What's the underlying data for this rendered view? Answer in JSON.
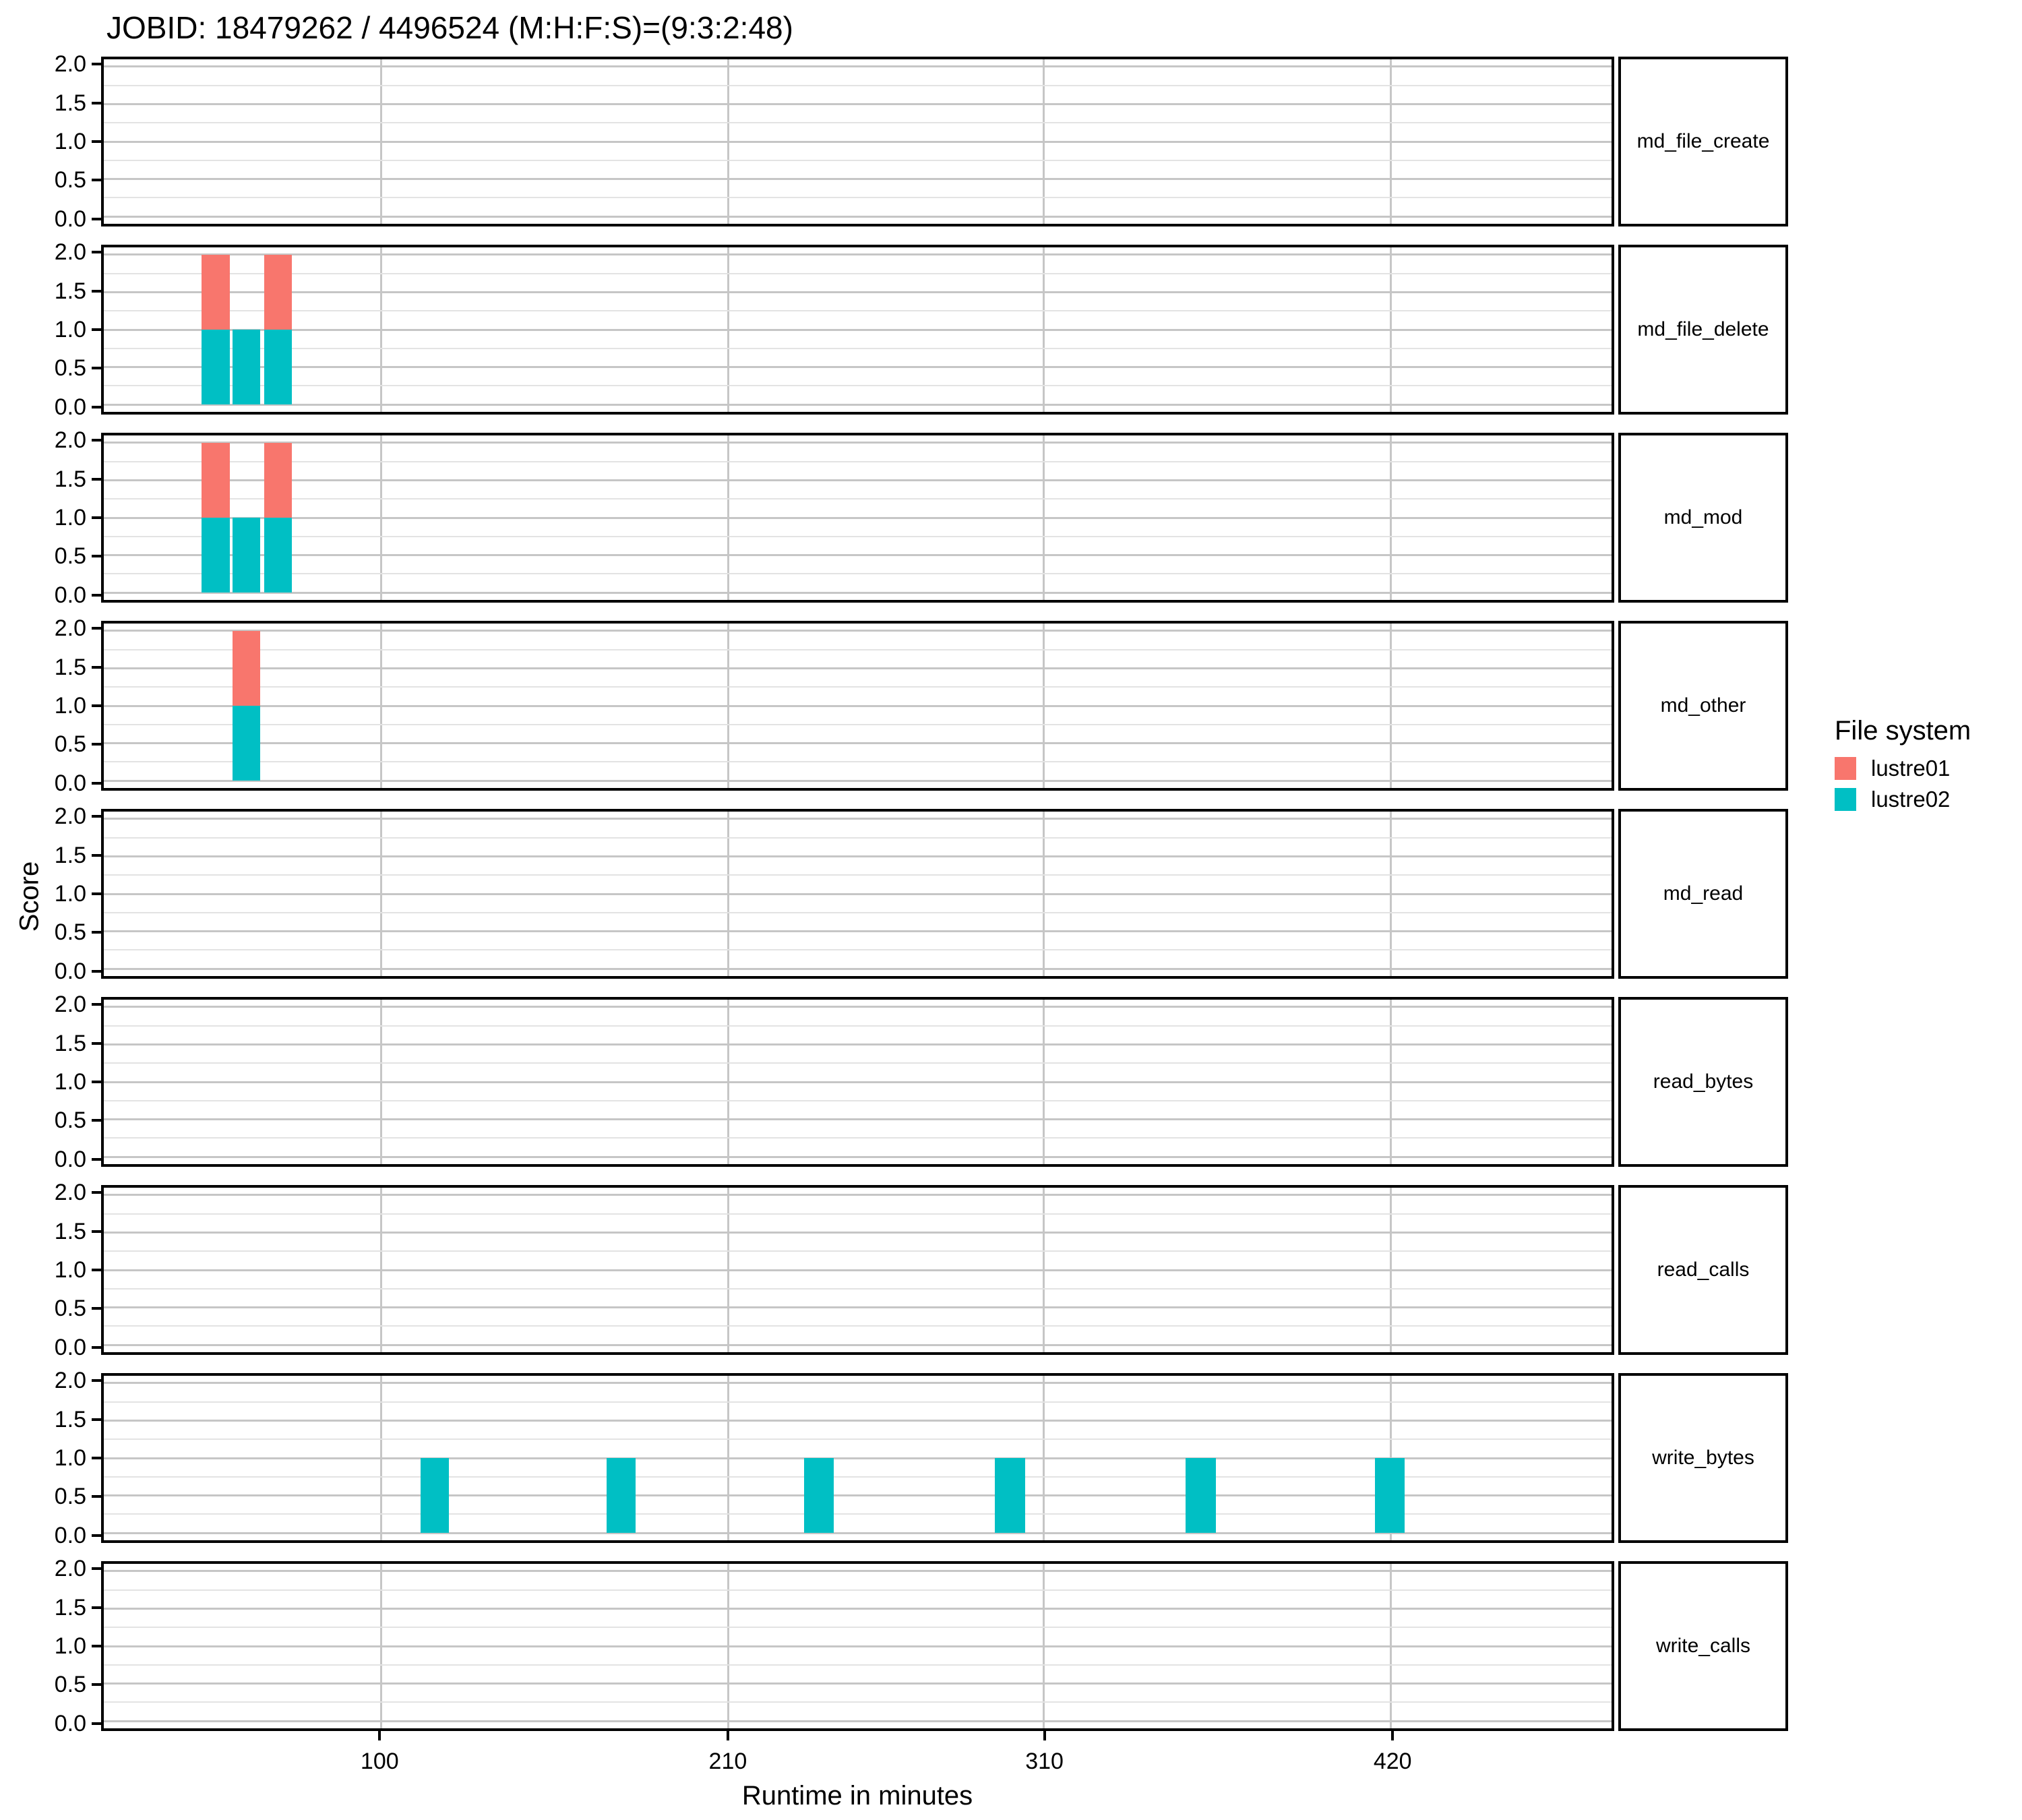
{
  "chart_data": {
    "type": "bar",
    "title": "JOBID: 18479262 / 4496524 (M:H:F:S)=(9:3:2:48)",
    "xlabel": "Runtime in minutes",
    "ylabel": "Score",
    "x_domain": [
      12,
      490
    ],
    "x_ticks": [
      100,
      210,
      310,
      420
    ],
    "x_tick_labels": [
      "100",
      "210",
      "310",
      "420"
    ],
    "y_domain": [
      0,
      2
    ],
    "y_ticks": [
      0,
      0.5,
      1,
      1.5,
      2
    ],
    "y_tick_labels": [
      "0.0",
      "0.5",
      "1.0",
      "1.5",
      "2.0"
    ],
    "y_minor_ticks": [
      0.25,
      0.75,
      1.25,
      1.75
    ],
    "grid": "on",
    "stack_mode": "stacked",
    "legend": {
      "title": "File system",
      "position": "right",
      "entries": [
        {
          "label": "lustre01",
          "color": "#F8766D"
        },
        {
          "label": "lustre02",
          "color": "#00BFC4"
        }
      ]
    },
    "facets": [
      {
        "label": "md_file_create",
        "bars": []
      },
      {
        "label": "md_file_delete",
        "bars": [
          {
            "start_min": 43.0,
            "end_min": 52.0,
            "stack": [
              {
                "file_system": "lustre02",
                "value": 1
              },
              {
                "file_system": "lustre01",
                "value": 1
              }
            ]
          },
          {
            "start_min": 52.9,
            "end_min": 61.6,
            "stack": [
              {
                "file_system": "lustre02",
                "value": 1
              }
            ]
          },
          {
            "start_min": 62.8,
            "end_min": 71.7,
            "stack": [
              {
                "file_system": "lustre02",
                "value": 1
              },
              {
                "file_system": "lustre01",
                "value": 1
              }
            ]
          }
        ]
      },
      {
        "label": "md_mod",
        "bars": [
          {
            "start_min": 43.0,
            "end_min": 52.0,
            "stack": [
              {
                "file_system": "lustre02",
                "value": 1
              },
              {
                "file_system": "lustre01",
                "value": 1
              }
            ]
          },
          {
            "start_min": 52.9,
            "end_min": 61.6,
            "stack": [
              {
                "file_system": "lustre02",
                "value": 1
              }
            ]
          },
          {
            "start_min": 62.8,
            "end_min": 71.7,
            "stack": [
              {
                "file_system": "lustre02",
                "value": 1
              },
              {
                "file_system": "lustre01",
                "value": 1
              }
            ]
          }
        ]
      },
      {
        "label": "md_other",
        "bars": [
          {
            "start_min": 52.9,
            "end_min": 61.6,
            "stack": [
              {
                "file_system": "lustre02",
                "value": 1
              },
              {
                "file_system": "lustre01",
                "value": 1
              }
            ]
          }
        ]
      },
      {
        "label": "md_read",
        "bars": []
      },
      {
        "label": "read_bytes",
        "bars": []
      },
      {
        "label": "read_calls",
        "bars": []
      },
      {
        "label": "write_bytes",
        "bars": [
          {
            "start_min": 112.5,
            "end_min": 121.5,
            "stack": [
              {
                "file_system": "lustre02",
                "value": 1
              }
            ]
          },
          {
            "start_min": 171.5,
            "end_min": 180.5,
            "stack": [
              {
                "file_system": "lustre02",
                "value": 1
              }
            ]
          },
          {
            "start_min": 234.0,
            "end_min": 243.5,
            "stack": [
              {
                "file_system": "lustre02",
                "value": 1
              }
            ]
          },
          {
            "start_min": 294.5,
            "end_min": 304.0,
            "stack": [
              {
                "file_system": "lustre02",
                "value": 1
              }
            ]
          },
          {
            "start_min": 355.0,
            "end_min": 364.5,
            "stack": [
              {
                "file_system": "lustre02",
                "value": 1
              }
            ]
          },
          {
            "start_min": 415.0,
            "end_min": 424.5,
            "stack": [
              {
                "file_system": "lustre02",
                "value": 1
              }
            ]
          }
        ]
      },
      {
        "label": "write_calls",
        "bars": []
      }
    ]
  }
}
